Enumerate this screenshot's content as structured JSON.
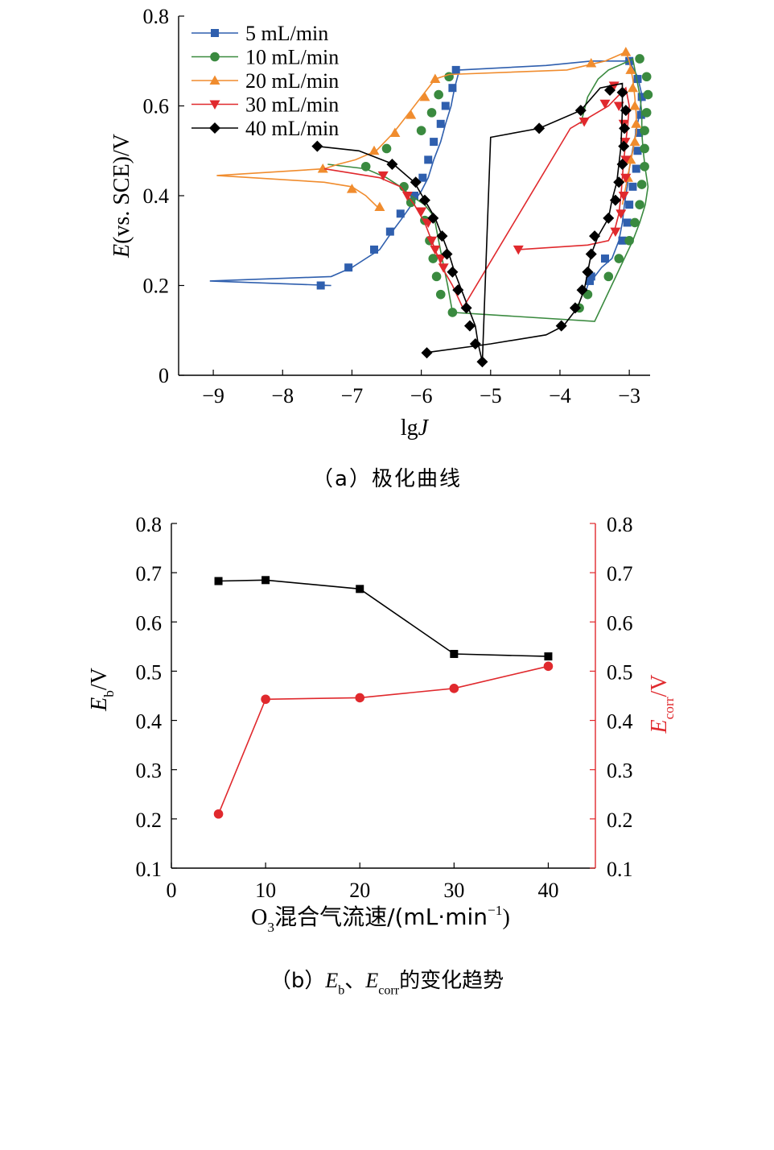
{
  "chart_data": [
    {
      "type": "line",
      "caption": "（a）极化曲线",
      "xlabel_prefix": "lg",
      "xlabel_var": "J",
      "ylabel_var": "E",
      "ylabel_rest": "(vs. SCE)/V",
      "xlim": [
        -9.5,
        -2.7
      ],
      "ylim": [
        0,
        0.8
      ],
      "xticks": [
        -9,
        -8,
        -7,
        -6,
        -5,
        -4,
        -3
      ],
      "xtick_labels": [
        "−9",
        "−8",
        "−7",
        "−6",
        "−5",
        "−4",
        "−3"
      ],
      "yticks": [
        0,
        0.2,
        0.4,
        0.6,
        0.8
      ],
      "ytick_labels": [
        "0",
        "0.2",
        "0.4",
        "0.6",
        "0.8"
      ],
      "grid": false,
      "legend_position": "top-left",
      "series": [
        {
          "name": "5 mL/min",
          "color": "#2f5fae",
          "marker": "square",
          "x": [
            -7.45,
            -7.3,
            -9.05,
            -7.3,
            -7.0,
            -6.8,
            -6.6,
            -6.42,
            -6.3,
            -6.14,
            -6.0,
            -5.9,
            -5.82,
            -5.72,
            -5.65,
            -5.57,
            -5.52,
            -5.45,
            -4.2,
            -3.55,
            -3.0,
            -2.88,
            -2.82,
            -2.85,
            -2.9,
            -2.95,
            -3.0,
            -3.03,
            -3.07,
            -3.1,
            -3.15,
            -3.25,
            -3.4,
            -3.5,
            -3.55,
            -3.6,
            -3.62
          ],
          "y": [
            0.2,
            0.2,
            0.21,
            0.22,
            0.24,
            0.26,
            0.28,
            0.32,
            0.345,
            0.38,
            0.41,
            0.44,
            0.48,
            0.52,
            0.56,
            0.6,
            0.64,
            0.68,
            0.69,
            0.7,
            0.7,
            0.665,
            0.625,
            0.585,
            0.545,
            0.505,
            0.46,
            0.42,
            0.38,
            0.34,
            0.3,
            0.26,
            0.24,
            0.22,
            0.21,
            0.2,
            0.19
          ],
          "markers": [
            [
              -7.45,
              0.2
            ],
            [
              -7.05,
              0.24
            ],
            [
              -6.68,
              0.28
            ],
            [
              -6.45,
              0.32
            ],
            [
              -6.3,
              0.36
            ],
            [
              -6.1,
              0.4
            ],
            [
              -5.98,
              0.44
            ],
            [
              -5.9,
              0.48
            ],
            [
              -5.82,
              0.52
            ],
            [
              -5.72,
              0.56
            ],
            [
              -5.65,
              0.6
            ],
            [
              -5.55,
              0.64
            ],
            [
              -5.5,
              0.68
            ],
            [
              -3.0,
              0.7
            ],
            [
              -2.88,
              0.66
            ],
            [
              -2.82,
              0.62
            ],
            [
              -2.83,
              0.58
            ],
            [
              -2.86,
              0.54
            ],
            [
              -2.88,
              0.5
            ],
            [
              -2.9,
              0.46
            ],
            [
              -2.95,
              0.42
            ],
            [
              -3.0,
              0.38
            ],
            [
              -3.03,
              0.34
            ],
            [
              -3.1,
              0.3
            ],
            [
              -3.35,
              0.26
            ],
            [
              -3.55,
              0.22
            ],
            [
              -3.57,
              0.21
            ]
          ]
        },
        {
          "name": "10 mL/min",
          "color": "#3a8a3f",
          "marker": "circle",
          "x": [
            -7.35,
            -6.8,
            -6.5,
            -6.3,
            -6.15,
            -5.95,
            -5.85,
            -5.8,
            -5.75,
            -5.7,
            -5.62,
            -5.55,
            -3.5,
            -2.95,
            -2.85,
            -2.77,
            -2.73,
            -2.77,
            -2.8,
            -2.82,
            -2.82,
            -2.85,
            -2.9,
            -2.95,
            -3.0,
            -3.08,
            -3.15,
            -3.3,
            -3.45,
            -3.6,
            -3.7
          ],
          "y": [
            0.47,
            0.46,
            0.44,
            0.42,
            0.4,
            0.38,
            0.36,
            0.34,
            0.3,
            0.26,
            0.2,
            0.14,
            0.12,
            0.3,
            0.34,
            0.38,
            0.42,
            0.46,
            0.5,
            0.54,
            0.585,
            0.625,
            0.665,
            0.705,
            0.7,
            0.695,
            0.69,
            0.68,
            0.66,
            0.62,
            0.56
          ],
          "markers": [
            [
              -6.8,
              0.465
            ],
            [
              -6.5,
              0.505
            ],
            [
              -6.25,
              0.42
            ],
            [
              -6.15,
              0.385
            ],
            [
              -5.95,
              0.345
            ],
            [
              -5.88,
              0.3
            ],
            [
              -5.83,
              0.26
            ],
            [
              -5.78,
              0.22
            ],
            [
              -5.72,
              0.18
            ],
            [
              -5.55,
              0.14
            ],
            [
              -3.72,
              0.15
            ],
            [
              -3.6,
              0.18
            ],
            [
              -3.3,
              0.22
            ],
            [
              -3.15,
              0.26
            ],
            [
              -3.0,
              0.3
            ],
            [
              -2.92,
              0.34
            ],
            [
              -2.85,
              0.38
            ],
            [
              -2.82,
              0.425
            ],
            [
              -2.78,
              0.465
            ],
            [
              -2.78,
              0.505
            ],
            [
              -2.78,
              0.545
            ],
            [
              -2.75,
              0.585
            ],
            [
              -2.73,
              0.625
            ],
            [
              -2.75,
              0.665
            ],
            [
              -2.85,
              0.705
            ],
            [
              -6.0,
              0.545
            ],
            [
              -5.85,
              0.585
            ],
            [
              -5.75,
              0.625
            ],
            [
              -5.6,
              0.665
            ]
          ]
        },
        {
          "name": "20 mL/min",
          "color": "#f08c2e",
          "marker": "triangle",
          "x": [
            -6.6,
            -6.8,
            -7.0,
            -7.4,
            -8.95,
            -7.4,
            -7.2,
            -6.95,
            -6.65,
            -6.4,
            -6.2,
            -6.0,
            -5.8,
            -5.6,
            -3.9,
            -3.35,
            -3.05,
            -3.0,
            -2.95,
            -2.92,
            -2.9,
            -2.9,
            -2.95,
            -3.0,
            -3.05,
            -3.1
          ],
          "y": [
            0.37,
            0.4,
            0.42,
            0.43,
            0.445,
            0.46,
            0.47,
            0.48,
            0.5,
            0.54,
            0.58,
            0.62,
            0.66,
            0.67,
            0.68,
            0.7,
            0.72,
            0.7,
            0.66,
            0.62,
            0.58,
            0.54,
            0.5,
            0.46,
            0.42,
            0.38
          ],
          "markers": [
            [
              -6.6,
              0.375
            ],
            [
              -7.0,
              0.415
            ],
            [
              -7.42,
              0.46
            ],
            [
              -6.68,
              0.5
            ],
            [
              -6.38,
              0.54
            ],
            [
              -6.15,
              0.58
            ],
            [
              -5.95,
              0.62
            ],
            [
              -5.8,
              0.66
            ],
            [
              -3.55,
              0.695
            ],
            [
              -3.05,
              0.72
            ],
            [
              -2.98,
              0.68
            ],
            [
              -2.95,
              0.64
            ],
            [
              -2.92,
              0.6
            ],
            [
              -2.9,
              0.56
            ],
            [
              -2.92,
              0.52
            ],
            [
              -2.98,
              0.48
            ],
            [
              -3.02,
              0.44
            ]
          ]
        },
        {
          "name": "30 mL/min",
          "color": "#e0292d",
          "marker": "triangle-down",
          "x": [
            -7.4,
            -7.0,
            -6.6,
            -6.3,
            -6.1,
            -5.95,
            -5.85,
            -5.8,
            -5.75,
            -5.7,
            -5.55,
            -5.4,
            -3.85,
            -3.3,
            -3.05,
            -3.0,
            -3.02,
            -3.05,
            -3.08,
            -3.1,
            -3.12,
            -3.15,
            -3.2,
            -3.3,
            -3.6,
            -4.6
          ],
          "y": [
            0.46,
            0.45,
            0.44,
            0.42,
            0.38,
            0.34,
            0.3,
            0.28,
            0.26,
            0.24,
            0.2,
            0.15,
            0.55,
            0.6,
            0.64,
            0.6,
            0.56,
            0.52,
            0.48,
            0.44,
            0.4,
            0.36,
            0.33,
            0.3,
            0.29,
            0.28
          ],
          "markers": [
            [
              -6.55,
              0.445
            ],
            [
              -6.2,
              0.4
            ],
            [
              -6.0,
              0.365
            ],
            [
              -5.9,
              0.34
            ],
            [
              -5.85,
              0.3
            ],
            [
              -5.8,
              0.28
            ],
            [
              -5.72,
              0.26
            ],
            [
              -5.68,
              0.24
            ],
            [
              -3.65,
              0.565
            ],
            [
              -3.35,
              0.605
            ],
            [
              -3.22,
              0.645
            ],
            [
              -3.15,
              0.6
            ],
            [
              -3.08,
              0.56
            ],
            [
              -3.06,
              0.52
            ],
            [
              -3.05,
              0.48
            ],
            [
              -3.05,
              0.44
            ],
            [
              -3.08,
              0.4
            ],
            [
              -3.12,
              0.36
            ],
            [
              -3.2,
              0.32
            ],
            [
              -4.6,
              0.28
            ]
          ]
        },
        {
          "name": "40 mL/min",
          "color": "#000000",
          "marker": "diamond",
          "x": [
            -7.5,
            -6.9,
            -6.4,
            -6.1,
            -5.95,
            -5.8,
            -5.7,
            -5.6,
            -5.52,
            -5.42,
            -5.32,
            -5.22,
            -5.18,
            -5.12,
            -5.0,
            -4.3,
            -3.7,
            -3.42,
            -3.1,
            -3.1,
            -3.12,
            -3.18,
            -3.25,
            -3.3,
            -3.45,
            -3.55,
            -3.65,
            -3.75,
            -3.95,
            -4.2,
            -5.0,
            -5.95
          ],
          "y": [
            0.51,
            0.5,
            0.47,
            0.43,
            0.39,
            0.35,
            0.31,
            0.27,
            0.23,
            0.19,
            0.15,
            0.11,
            0.07,
            0.03,
            0.53,
            0.55,
            0.59,
            0.64,
            0.65,
            0.59,
            0.51,
            0.43,
            0.39,
            0.35,
            0.31,
            0.27,
            0.19,
            0.15,
            0.11,
            0.09,
            0.07,
            0.05
          ],
          "markers": [
            [
              -7.5,
              0.51
            ],
            [
              -6.42,
              0.47
            ],
            [
              -6.08,
              0.43
            ],
            [
              -5.95,
              0.39
            ],
            [
              -5.83,
              0.35
            ],
            [
              -5.7,
              0.31
            ],
            [
              -5.63,
              0.27
            ],
            [
              -5.55,
              0.23
            ],
            [
              -5.47,
              0.19
            ],
            [
              -5.35,
              0.15
            ],
            [
              -5.3,
              0.11
            ],
            [
              -5.22,
              0.07
            ],
            [
              -5.12,
              0.03
            ],
            [
              -5.92,
              0.05
            ],
            [
              -3.98,
              0.11
            ],
            [
              -3.78,
              0.15
            ],
            [
              -3.68,
              0.19
            ],
            [
              -3.6,
              0.23
            ],
            [
              -3.55,
              0.27
            ],
            [
              -3.5,
              0.31
            ],
            [
              -3.3,
              0.35
            ],
            [
              -3.2,
              0.39
            ],
            [
              -3.15,
              0.43
            ],
            [
              -3.1,
              0.47
            ],
            [
              -3.08,
              0.51
            ],
            [
              -3.07,
              0.55
            ],
            [
              -3.05,
              0.59
            ],
            [
              -3.1,
              0.63
            ],
            [
              -3.28,
              0.635
            ],
            [
              -4.3,
              0.55
            ],
            [
              -3.7,
              0.59
            ]
          ]
        }
      ]
    },
    {
      "type": "line",
      "caption_parts": [
        "（b）",
        "E",
        "b",
        "、",
        "E",
        "corr",
        "的变化趋势"
      ],
      "xlabel_parts": [
        "O",
        "3",
        "混合气流速/(mL·min",
        "−1",
        ")"
      ],
      "ylabel_left_parts": [
        "E",
        "b",
        "/V"
      ],
      "ylabel_right_parts": [
        "E",
        "corr",
        "/V"
      ],
      "xlim": [
        0,
        45
      ],
      "ylim": [
        0.1,
        0.8
      ],
      "xticks": [
        0,
        10,
        20,
        30,
        40
      ],
      "xtick_labels": [
        "0",
        "10",
        "20",
        "30",
        "40"
      ],
      "yticks": [
        0.1,
        0.2,
        0.3,
        0.4,
        0.5,
        0.6,
        0.7,
        0.8
      ],
      "ytick_labels": [
        "0.1",
        "0.2",
        "0.3",
        "0.4",
        "0.5",
        "0.6",
        "0.7",
        "0.8"
      ],
      "grid": false,
      "right_axis_color": "#e0292d",
      "x": [
        5,
        10,
        20,
        30,
        40
      ],
      "series": [
        {
          "axis": "left",
          "color": "#000000",
          "marker": "square",
          "values": [
            0.683,
            0.685,
            0.667,
            0.535,
            0.53
          ]
        },
        {
          "axis": "right",
          "color": "#e0292d",
          "marker": "circle",
          "values": [
            0.21,
            0.443,
            0.446,
            0.465,
            0.51
          ]
        }
      ]
    }
  ]
}
